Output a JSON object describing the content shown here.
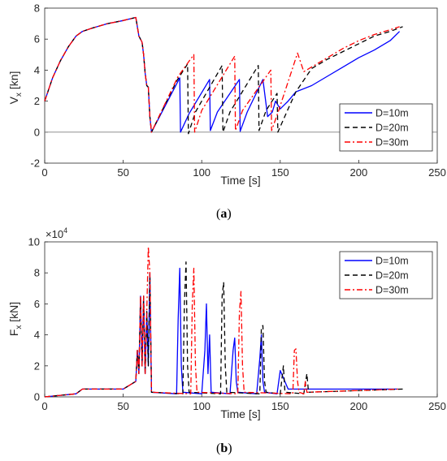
{
  "captions": {
    "a_open": "(",
    "a_letter": "a",
    "a_close": ")",
    "b_open": "(",
    "b_letter": "b",
    "b_close": ")"
  },
  "colors": {
    "D10": "#0000ff",
    "D20": "#000000",
    "D30": "#ff0000",
    "zero_line": "#808080"
  },
  "chart_data": [
    {
      "id": "a",
      "type": "line",
      "xlabel": "Time [s]",
      "ylabel_main": "V",
      "ylabel_sub": "x",
      "ylabel_unit": " [kn]",
      "xlim": [
        0,
        250
      ],
      "ylim": [
        -2,
        8
      ],
      "xticks": [
        "0",
        "50",
        "100",
        "150",
        "200",
        "250"
      ],
      "yticks": [
        "-2",
        "0",
        "2",
        "4",
        "6",
        "8"
      ],
      "legend_position": "right",
      "grid": false,
      "zero_line": true,
      "series": [
        {
          "name": "D=10m",
          "style": "solid",
          "x": [
            0,
            5,
            10,
            15,
            20,
            24,
            30,
            40,
            50,
            58,
            60,
            62,
            63,
            64,
            65,
            66,
            67,
            68,
            86,
            86.5,
            92,
            105,
            105.5,
            110,
            124,
            124.5,
            129,
            139,
            142,
            145,
            147,
            150,
            152,
            155,
            160,
            170,
            180,
            190,
            200,
            210,
            220,
            226
          ],
          "y": [
            2,
            3.5,
            4.6,
            5.5,
            6.2,
            6.5,
            6.7,
            7.0,
            7.2,
            7.4,
            6.2,
            5.8,
            5.0,
            3.8,
            3.0,
            2.9,
            1.0,
            0,
            3.5,
            0,
            1.2,
            3.4,
            0.1,
            1.3,
            3.4,
            0.05,
            1.3,
            3.4,
            1.0,
            1.3,
            2.0,
            1.5,
            1.7,
            2.0,
            2.6,
            3.0,
            3.6,
            4.2,
            4.8,
            5.3,
            5.9,
            6.5
          ]
        },
        {
          "name": "D=20m",
          "style": "dashed",
          "x": [
            0,
            5,
            10,
            15,
            20,
            24,
            30,
            40,
            50,
            58,
            60,
            62,
            63,
            64,
            65,
            66,
            67,
            68,
            84,
            91,
            91.5,
            96,
            113,
            113.5,
            118,
            136,
            136.5,
            141,
            148,
            148.5,
            155,
            160,
            170,
            180,
            190,
            200,
            210,
            220,
            228
          ],
          "y": [
            2,
            3.5,
            4.6,
            5.5,
            6.2,
            6.5,
            6.7,
            7.0,
            7.2,
            7.4,
            6.2,
            5.8,
            5.0,
            3.8,
            3.0,
            2.9,
            1.0,
            0,
            3.3,
            4.4,
            -0.1,
            1.3,
            4.3,
            0,
            1.3,
            4.3,
            0.1,
            1.4,
            2.5,
            0,
            1.5,
            2.6,
            4.1,
            4.7,
            5.2,
            5.7,
            6.2,
            6.5,
            6.8
          ]
        },
        {
          "name": "D=30m",
          "style": "dashdot",
          "x": [
            0,
            5,
            10,
            15,
            20,
            24,
            30,
            40,
            50,
            58,
            60,
            62,
            63,
            64,
            65,
            66,
            67,
            68,
            85,
            95,
            95.5,
            100,
            121,
            121.5,
            126,
            144,
            144.5,
            149,
            161,
            165,
            170,
            180,
            190,
            200,
            210,
            220,
            226
          ],
          "y": [
            2,
            3.5,
            4.6,
            5.5,
            6.2,
            6.5,
            6.7,
            7.0,
            7.2,
            7.4,
            6.2,
            5.8,
            5.0,
            3.8,
            3.0,
            2.9,
            1.0,
            0,
            3.6,
            5.0,
            0,
            1.4,
            4.9,
            0.1,
            1.4,
            4.0,
            0.1,
            1.4,
            5.1,
            3.9,
            4.2,
            4.8,
            5.4,
            5.9,
            6.3,
            6.6,
            6.8
          ]
        }
      ]
    },
    {
      "id": "b",
      "type": "line",
      "xlabel": "Time [s]",
      "ylabel_main": "F",
      "ylabel_sub": "x",
      "ylabel_unit": " [kN]",
      "exponent_base": "×10",
      "exponent_power": "4",
      "xlim": [
        0,
        250
      ],
      "ylim": [
        0,
        10
      ],
      "xticks": [
        "0",
        "50",
        "100",
        "150",
        "200",
        "250"
      ],
      "yticks": [
        "0",
        "2",
        "4",
        "6",
        "8",
        "10"
      ],
      "legend_position": "top-right",
      "grid": false,
      "series": [
        {
          "name": "D=10m",
          "style": "solid",
          "x": [
            0,
            10,
            20,
            24,
            50,
            58,
            59,
            60,
            61,
            62,
            63,
            64,
            65,
            66,
            67,
            68,
            84,
            85,
            86,
            87,
            88,
            100,
            102,
            103,
            104,
            105,
            106,
            118,
            120,
            121,
            122,
            123,
            135,
            137,
            138,
            139,
            140,
            148,
            150,
            155,
            160,
            225
          ],
          "y": [
            0,
            0.1,
            0.2,
            0.5,
            0.5,
            1.0,
            3.0,
            1.5,
            6.5,
            2.0,
            6.5,
            1.5,
            5.5,
            2.0,
            8.0,
            0.3,
            0.2,
            5.0,
            8.3,
            2.0,
            0.3,
            0.2,
            3.0,
            6.0,
            1.5,
            4.0,
            0.3,
            0.2,
            3.0,
            3.8,
            1.0,
            0.3,
            0.2,
            2.5,
            4.0,
            1.0,
            0.3,
            0.2,
            1.7,
            0.5,
            0.5,
            0.5
          ]
        },
        {
          "name": "D=20m",
          "style": "dashed",
          "x": [
            0,
            10,
            20,
            24,
            50,
            58,
            59,
            60,
            61,
            62,
            63,
            64,
            65,
            66,
            67,
            68,
            88,
            89,
            90,
            91,
            92,
            112,
            113,
            114,
            115,
            116,
            137,
            138,
            139,
            140,
            141,
            150,
            152,
            153,
            165,
            167,
            168,
            228
          ],
          "y": [
            0,
            0.1,
            0.2,
            0.5,
            0.5,
            1.0,
            3.0,
            1.5,
            6.5,
            2.0,
            6.5,
            1.5,
            5.5,
            2.0,
            8.0,
            0.3,
            0.2,
            6.0,
            8.7,
            2.0,
            0.3,
            0.2,
            6.5,
            7.4,
            2.0,
            0.3,
            0.2,
            4.5,
            4.6,
            1.0,
            0.3,
            0.2,
            2.0,
            0.3,
            0.2,
            1.5,
            0.3,
            0.5
          ]
        },
        {
          "name": "D=30m",
          "style": "dashdot",
          "x": [
            0,
            10,
            20,
            24,
            50,
            58,
            59,
            60,
            61,
            62,
            63,
            64,
            65,
            66,
            67,
            68,
            93,
            94,
            95,
            96,
            97,
            123,
            124,
            125,
            126,
            127,
            158,
            159,
            160,
            161,
            162,
            165,
            166,
            167,
            226
          ],
          "y": [
            0,
            0.1,
            0.2,
            0.5,
            0.5,
            1.0,
            3.0,
            1.5,
            6.5,
            2.0,
            6.5,
            1.5,
            5.5,
            9.7,
            8.0,
            0.3,
            0.2,
            6.0,
            8.3,
            2.0,
            0.3,
            0.2,
            5.5,
            6.8,
            2.0,
            0.3,
            0.2,
            3.0,
            3.1,
            1.0,
            0.3,
            0.2,
            1.0,
            0.3,
            0.5
          ]
        }
      ]
    }
  ]
}
